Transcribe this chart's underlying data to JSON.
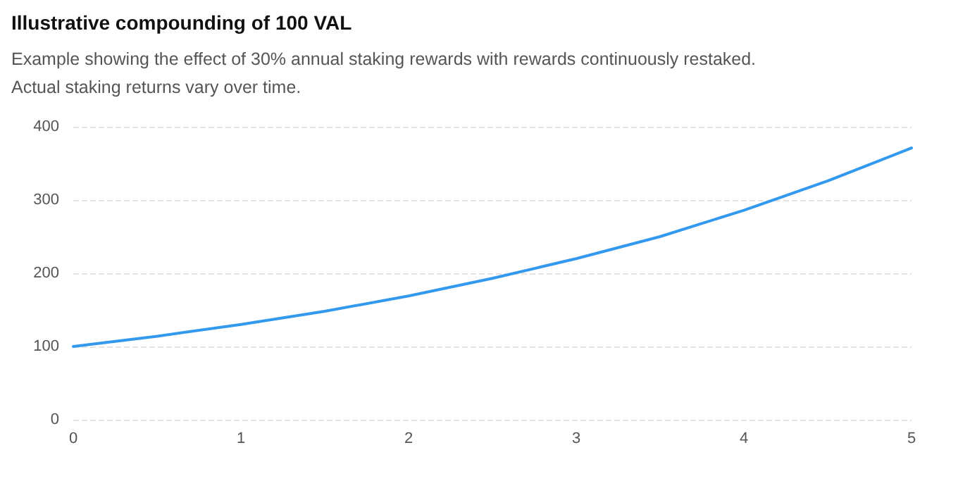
{
  "chart_data": {
    "type": "line",
    "title": "Illustrative compounding of 100 VAL",
    "subtitle": "Example showing the effect of 30% annual staking rewards with rewards continuously restaked. Actual staking returns vary over time.",
    "x": [
      0,
      0.5,
      1,
      1.5,
      2,
      2.5,
      3,
      3.5,
      4,
      4.5,
      5
    ],
    "series": [
      {
        "color": "#3399ee",
        "values": [
          100,
          114,
          130,
          148,
          169,
          193,
          220,
          250,
          286,
          326,
          371
        ]
      }
    ],
    "xlim": [
      0,
      5
    ],
    "xticks": [
      0,
      1,
      2,
      3,
      4,
      5
    ],
    "ylim": [
      0,
      400
    ],
    "yticks": [
      0,
      100,
      200,
      300,
      400
    ],
    "grid": "y",
    "marker": "none",
    "line_style": "solid"
  }
}
